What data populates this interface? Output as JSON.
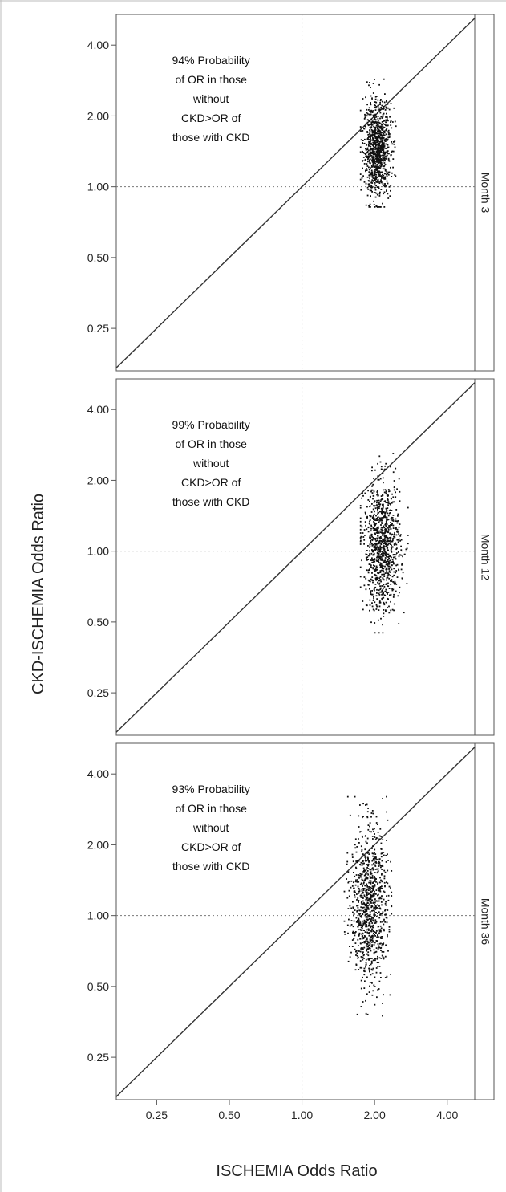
{
  "chart_data": {
    "type": "scatter",
    "xlabel": "ISCHEMIA Odds Ratio",
    "ylabel": "CKD-ISCHEMIA Odds Ratio",
    "scale": "log2",
    "xlim": [
      0.17,
      5.2
    ],
    "ylim": [
      0.165,
      5.4
    ],
    "x_ticks": [
      "0.25",
      "0.50",
      "1.00",
      "2.00",
      "4.00"
    ],
    "y_ticks": [
      "0.25",
      "0.50",
      "1.00",
      "2.00",
      "4.00"
    ],
    "reference_lines": {
      "vertical_x": 1.0,
      "horizontal_y": 1.0,
      "diagonal": "y = x"
    },
    "panels": [
      {
        "strip": "Month 3",
        "annotation": [
          "94% Probability",
          "of OR in those",
          "without",
          "CKD>OR of",
          "those with CKD"
        ],
        "cloud": {
          "x_median": 2.05,
          "x_min": 1.75,
          "x_max": 2.45,
          "y_median": 1.45,
          "y_min": 0.82,
          "y_max": 2.95,
          "n_points": 1000
        }
      },
      {
        "strip": "Month 12",
        "annotation": [
          "99% Probability",
          "of OR in those",
          "without",
          "CKD>OR of",
          "those with CKD"
        ],
        "cloud": {
          "x_median": 2.15,
          "x_min": 1.75,
          "x_max": 2.75,
          "y_median": 1.05,
          "y_min": 0.45,
          "y_max": 2.6,
          "n_points": 1000
        }
      },
      {
        "strip": "Month 36",
        "annotation": [
          "93% Probability",
          "of OR in those",
          "without",
          "CKD>OR of",
          "those with CKD"
        ],
        "cloud": {
          "x_median": 1.9,
          "x_min": 1.5,
          "x_max": 2.35,
          "y_median": 1.1,
          "y_min": 0.37,
          "y_max": 3.2,
          "n_points": 1000
        }
      }
    ]
  }
}
